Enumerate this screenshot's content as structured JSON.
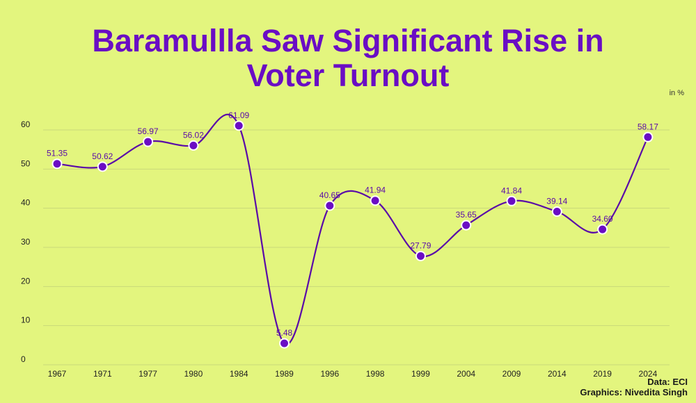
{
  "title_lines": [
    "Baramullla Saw Significant Rise in",
    "Voter Turnout"
  ],
  "unit": "in %",
  "credits": {
    "data": "Data: ECI",
    "graphics": "Graphics: Nivedita Singh"
  },
  "colors": {
    "background": "#e3f57e",
    "accent": "#6a0dc4",
    "line": "#5a0aa8"
  },
  "chart_data": {
    "type": "line",
    "title": "Baramullla Saw Significant Rise in Voter Turnout",
    "xlabel": "",
    "ylabel": "",
    "ylim": [
      0,
      60
    ],
    "yticks": [
      0,
      10,
      20,
      30,
      40,
      50,
      60
    ],
    "grid": true,
    "categories": [
      "1967",
      "1971",
      "1977",
      "1980",
      "1984",
      "1989",
      "1996",
      "1998",
      "1999",
      "2004",
      "2009",
      "2014",
      "2019",
      "2024"
    ],
    "values": [
      51.35,
      50.62,
      56.97,
      56.02,
      61.09,
      5.48,
      40.65,
      41.94,
      27.79,
      35.65,
      41.84,
      39.14,
      34.6,
      58.17
    ],
    "labels": [
      "51.35",
      "50.62",
      "56.97",
      "56.02",
      "61.09",
      "5.48",
      "40.65",
      "41.94",
      "27.79",
      "35.65",
      "41.84",
      "39.14",
      "34.60",
      "58.17"
    ]
  }
}
